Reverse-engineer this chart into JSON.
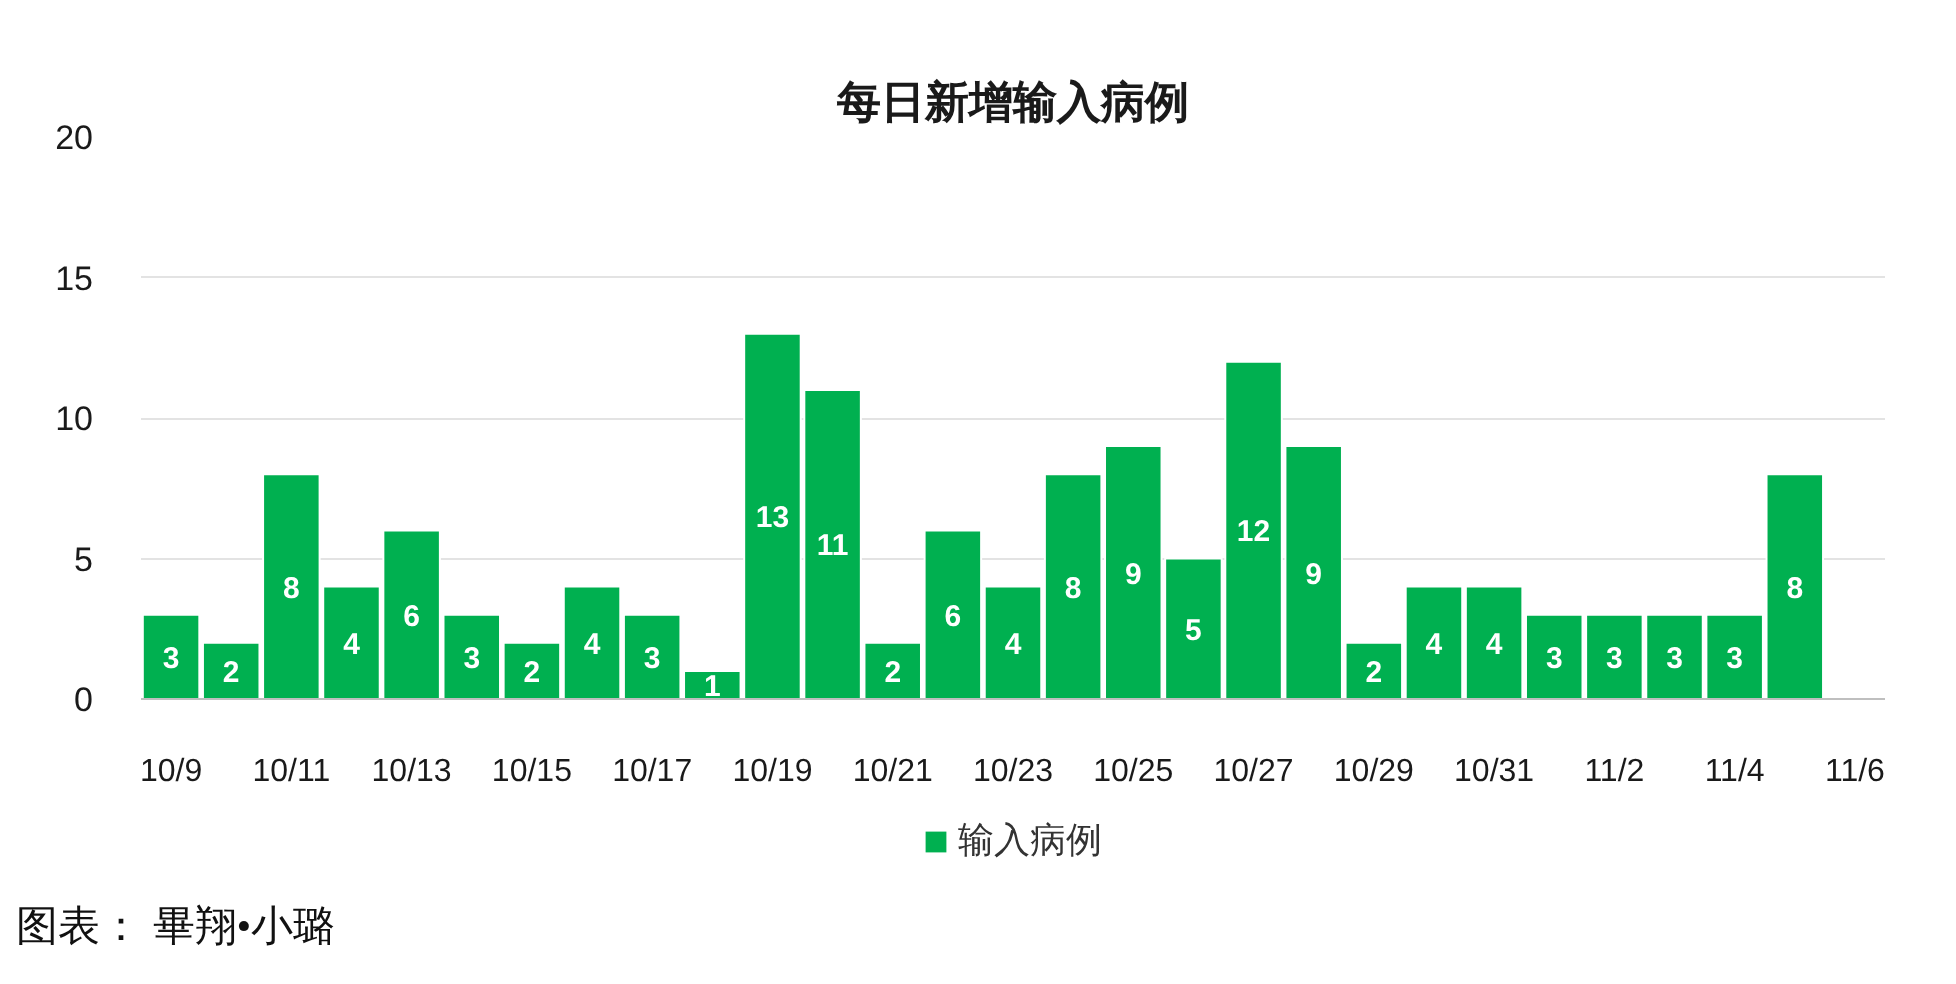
{
  "chart_data": {
    "type": "bar",
    "title": "每日新增输入病例",
    "categories": [
      "10/9",
      null,
      "10/11",
      null,
      "10/13",
      null,
      "10/15",
      null,
      "10/17",
      null,
      "10/19",
      null,
      "10/21",
      null,
      "10/23",
      null,
      "10/25",
      null,
      "10/27",
      null,
      "10/29",
      null,
      "10/31",
      null,
      "11/2",
      null,
      "11/4",
      null,
      "11/6"
    ],
    "series": [
      {
        "name": "输入病例",
        "color": "#00b050",
        "values": [
          3,
          2,
          8,
          4,
          6,
          3,
          2,
          4,
          3,
          1,
          13,
          11,
          2,
          6,
          4,
          8,
          9,
          5,
          12,
          9,
          2,
          4,
          4,
          3,
          3,
          3,
          3,
          8,
          null
        ]
      }
    ],
    "ylim": [
      0,
      20
    ],
    "yticks": [
      0,
      5,
      10,
      15,
      20
    ],
    "grid": "y",
    "legend": "bottom",
    "data_labels": true,
    "annotations": [
      "图表： 畢翔•小璐"
    ]
  }
}
